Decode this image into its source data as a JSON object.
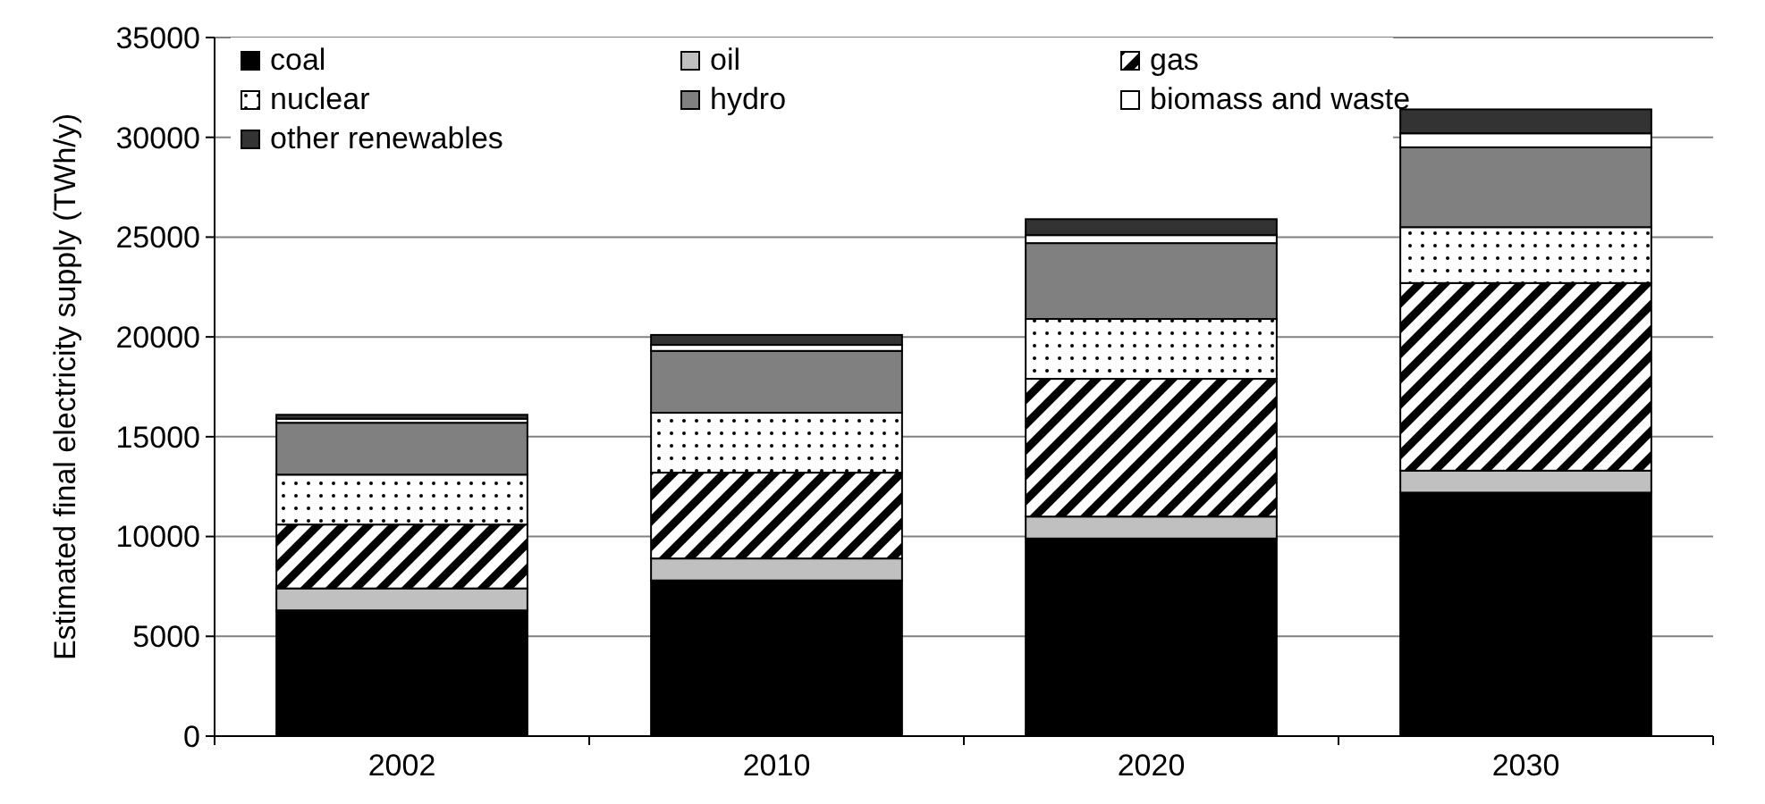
{
  "chart_data": {
    "type": "bar",
    "stacked": true,
    "ylabel": "Estimated final electricity supply (TWh/y)",
    "categories": [
      "2002",
      "2010",
      "2020",
      "2030"
    ],
    "series": [
      {
        "name": "coal",
        "color": "#000000",
        "values": [
          6300,
          7800,
          9900,
          12200
        ]
      },
      {
        "name": "oil",
        "color": "#c0c0c0",
        "values": [
          1100,
          1100,
          1100,
          1100
        ]
      },
      {
        "name": "gas",
        "color": "#000000",
        "values": [
          3200,
          4300,
          6900,
          9400
        ]
      },
      {
        "name": "nuclear",
        "color": "#000000",
        "values": [
          2500,
          3000,
          3000,
          2800
        ]
      },
      {
        "name": "hydro",
        "color": "#808080",
        "values": [
          2600,
          3100,
          3800,
          4000
        ]
      },
      {
        "name": "biomass and waste",
        "color": "#ffffff",
        "values": [
          200,
          300,
          400,
          700
        ]
      },
      {
        "name": "other renewables",
        "color": "#333333",
        "values": [
          200,
          500,
          800,
          1200
        ]
      }
    ],
    "ylim": [
      0,
      35000
    ],
    "yticks": [
      0,
      5000,
      10000,
      15000,
      20000,
      25000,
      30000,
      35000
    ],
    "grid": "y",
    "legend": "top left"
  }
}
